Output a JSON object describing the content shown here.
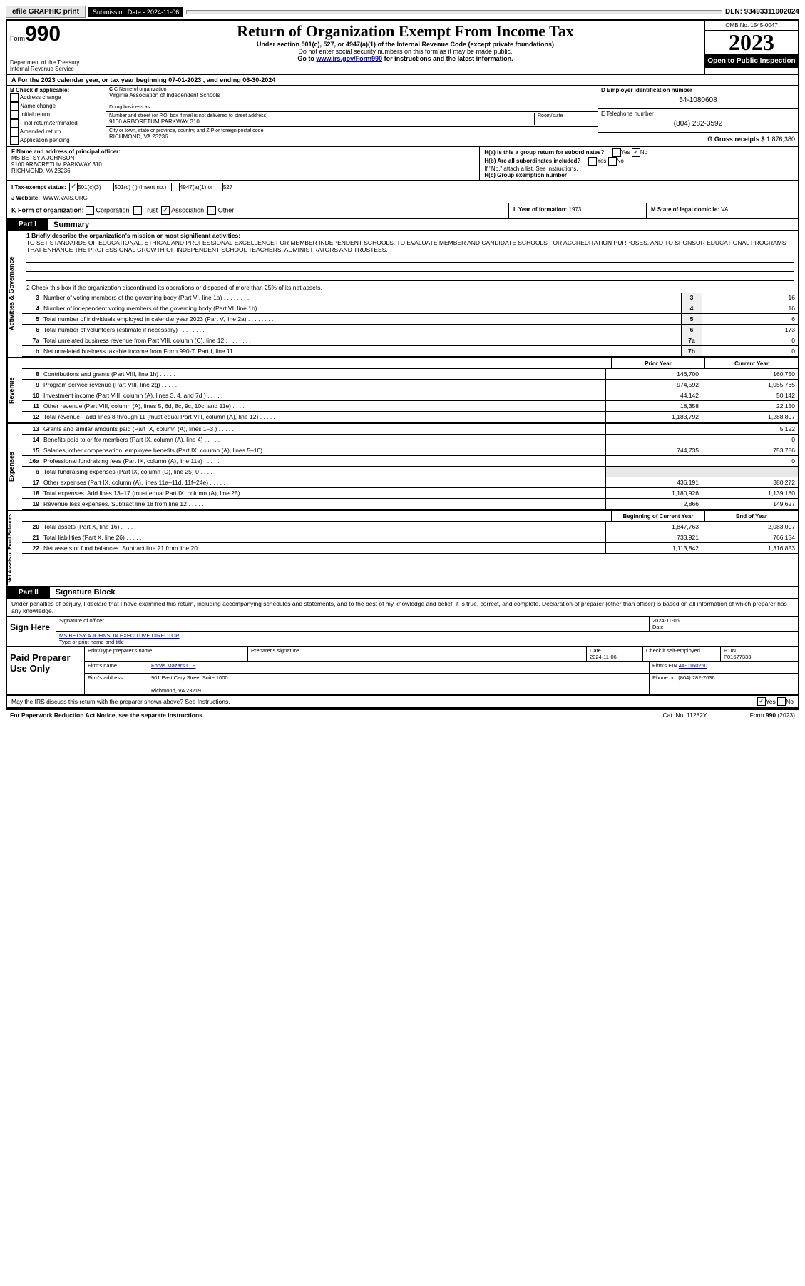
{
  "topbar": {
    "efile": "efile GRAPHIC print",
    "sub_date_label": "Submission Date - 2024-11-06",
    "dln": "DLN: 93493311002024"
  },
  "header": {
    "form_label": "Form",
    "form_num": "990",
    "dept": "Department of the Treasury",
    "irs": "Internal Revenue Service",
    "title": "Return of Organization Exempt From Income Tax",
    "sub1": "Under section 501(c), 527, or 4947(a)(1) of the Internal Revenue Code (except private foundations)",
    "sub2": "Do not enter social security numbers on this form as it may be made public.",
    "sub3_pre": "Go to ",
    "sub3_link": "www.irs.gov/Form990",
    "sub3_post": " for instructions and the latest information.",
    "omb": "OMB No. 1545-0047",
    "year": "2023",
    "open": "Open to Public Inspection"
  },
  "row_a": "A For the 2023 calendar year, or tax year beginning 07-01-2023   , and ending 06-30-2024",
  "section_b": {
    "b_label": "B Check if applicable:",
    "opts": [
      "Address change",
      "Name change",
      "Initial return",
      "Final return/terminated",
      "Amended return",
      "Application pending"
    ],
    "c_label": "C Name of organization",
    "org_name": "Virginia Association of Independent Schools",
    "dba_label": "Doing business as",
    "addr_label": "Number and street (or P.O. box if mail is not delivered to street address)",
    "room_label": "Room/suite",
    "addr": "9100 ARBORETUM PARKWAY 310",
    "city_label": "City or town, state or province, country, and ZIP or foreign postal code",
    "city": "RICHMOND, VA  23236",
    "d_label": "D Employer identification number",
    "ein": "54-1080608",
    "e_label": "E Telephone number",
    "phone": "(804) 282-3592",
    "g_label": "G Gross receipts $",
    "gross": "1,876,380"
  },
  "row_f": {
    "f_label": "F Name and address of principal officer:",
    "officer": "MS BETSY A JOHNSON",
    "officer_addr": "9100 ARBORETUM PARKWAY 310",
    "officer_city": "RICHMOND, VA  23236",
    "ha": "H(a)  Is this a group return for subordinates?",
    "hb": "H(b)  Are all subordinates included?",
    "hb_note": "If \"No,\" attach a list. See instructions.",
    "hc": "H(c)  Group exemption number",
    "yes": "Yes",
    "no": "No"
  },
  "row_i": {
    "label": "I   Tax-exempt status:",
    "o1": "501(c)(3)",
    "o2": "501(c) (  ) (insert no.)",
    "o3": "4947(a)(1) or",
    "o4": "527"
  },
  "row_j": {
    "label": "J   Website:",
    "site": "WWW.VAIS.ORG"
  },
  "row_k": {
    "k_label": "K Form of organization:",
    "corp": "Corporation",
    "trust": "Trust",
    "assoc": "Association",
    "other": "Other",
    "l_label": "L Year of formation: ",
    "l_val": "1973",
    "m_label": "M State of legal domicile: ",
    "m_val": "VA"
  },
  "part1": {
    "label": "Part I",
    "title": "Summary",
    "line1_label": "1   Briefly describe the organization's mission or most significant activities:",
    "mission": "TO SET STANDARDS OF EDUCATIONAL, ETHICAL AND PROFESSIONAL EXCELLENCE FOR MEMBER INDEPENDENT SCHOOLS, TO EVALUATE MEMBER AND CANDIDATE SCHOOLS FOR ACCREDITATION PURPOSES, AND TO SPONSOR EDUCATIONAL PROGRAMS THAT ENHANCE THE PROFESSIONAL GROWTH OF INDEPENDENT SCHOOL TEACHERS, ADMINISTRATORS AND TRUSTEES.",
    "line2": "2   Check this box      if the organization discontinued its operations or disposed of more than 25% of its net assets.",
    "side_gov": "Activities & Governance",
    "side_rev": "Revenue",
    "side_exp": "Expenses",
    "side_net": "Net Assets or Fund Balances",
    "prior_year": "Prior Year",
    "current_year": "Current Year",
    "beg_year": "Beginning of Current Year",
    "end_year": "End of Year"
  },
  "gov_lines": [
    {
      "n": "3",
      "d": "Number of voting members of the governing body (Part VI, line 1a)",
      "box": "3",
      "v": "16"
    },
    {
      "n": "4",
      "d": "Number of independent voting members of the governing body (Part VI, line 1b)",
      "box": "4",
      "v": "16"
    },
    {
      "n": "5",
      "d": "Total number of individuals employed in calendar year 2023 (Part V, line 2a)",
      "box": "5",
      "v": "6"
    },
    {
      "n": "6",
      "d": "Total number of volunteers (estimate if necessary)",
      "box": "6",
      "v": "173"
    },
    {
      "n": "7a",
      "d": "Total unrelated business revenue from Part VIII, column (C), line 12",
      "box": "7a",
      "v": "0"
    },
    {
      "n": "b",
      "d": "Net unrelated business taxable income from Form 990-T, Part I, line 11",
      "box": "7b",
      "v": "0"
    }
  ],
  "rev_lines": [
    {
      "n": "8",
      "d": "Contributions and grants (Part VIII, line 1h)",
      "p": "146,700",
      "c": "160,750"
    },
    {
      "n": "9",
      "d": "Program service revenue (Part VIII, line 2g)",
      "p": "974,592",
      "c": "1,055,765"
    },
    {
      "n": "10",
      "d": "Investment income (Part VIII, column (A), lines 3, 4, and 7d )",
      "p": "44,142",
      "c": "50,142"
    },
    {
      "n": "11",
      "d": "Other revenue (Part VIII, column (A), lines 5, 6d, 8c, 9c, 10c, and 11e)",
      "p": "18,358",
      "c": "22,150"
    },
    {
      "n": "12",
      "d": "Total revenue—add lines 8 through 11 (must equal Part VIII, column (A), line 12)",
      "p": "1,183,792",
      "c": "1,288,807"
    }
  ],
  "exp_lines": [
    {
      "n": "13",
      "d": "Grants and similar amounts paid (Part IX, column (A), lines 1–3 )",
      "p": "",
      "c": "5,122"
    },
    {
      "n": "14",
      "d": "Benefits paid to or for members (Part IX, column (A), line 4)",
      "p": "",
      "c": "0"
    },
    {
      "n": "15",
      "d": "Salaries, other compensation, employee benefits (Part IX, column (A), lines 5–10)",
      "p": "744,735",
      "c": "753,786"
    },
    {
      "n": "16a",
      "d": "Professional fundraising fees (Part IX, column (A), line 11e)",
      "p": "",
      "c": "0"
    },
    {
      "n": "b",
      "d": "Total fundraising expenses (Part IX, column (D), line 25) 0",
      "p": "",
      "c": "",
      "gray": true
    },
    {
      "n": "17",
      "d": "Other expenses (Part IX, column (A), lines 11a–11d, 11f–24e)",
      "p": "436,191",
      "c": "380,272"
    },
    {
      "n": "18",
      "d": "Total expenses. Add lines 13–17 (must equal Part IX, column (A), line 25)",
      "p": "1,180,926",
      "c": "1,139,180"
    },
    {
      "n": "19",
      "d": "Revenue less expenses. Subtract line 18 from line 12",
      "p": "2,866",
      "c": "149,627"
    }
  ],
  "net_lines": [
    {
      "n": "20",
      "d": "Total assets (Part X, line 16)",
      "p": "1,847,763",
      "c": "2,083,007"
    },
    {
      "n": "21",
      "d": "Total liabilities (Part X, line 26)",
      "p": "733,921",
      "c": "766,154"
    },
    {
      "n": "22",
      "d": "Net assets or fund balances. Subtract line 21 from line 20",
      "p": "1,113,842",
      "c": "1,316,853"
    }
  ],
  "part2": {
    "label": "Part II",
    "title": "Signature Block",
    "text": "Under penalties of perjury, I declare that I have examined this return, including accompanying schedules and statements, and to the best of my knowledge and belief, it is true, correct, and complete. Declaration of preparer (other than officer) is based on all information of which preparer has any knowledge."
  },
  "sign": {
    "here": "Sign Here",
    "sig_label": "Signature of officer",
    "date_label": "Date",
    "date1": "2024-11-06",
    "officer": "MS BETSY A JOHNSON  EXECUTIVE DIRECTOR",
    "type_label": "Type or print name and title"
  },
  "paid": {
    "label": "Paid Preparer Use Only",
    "print_label": "Print/Type preparer's name",
    "sig_label": "Preparer's signature",
    "date_label": "Date",
    "date": "2024-11-06",
    "check_label": "Check        if self-employed",
    "ptin_label": "PTIN",
    "ptin": "P01677333",
    "firm_label": "Firm's name",
    "firm": "Forvis Mazars LLP",
    "ein_label": "Firm's EIN",
    "ein": "44-0160260",
    "addr_label": "Firm's address",
    "addr": "901 East Cary Street Suite 1000",
    "city": "Richmond, VA  23219",
    "phone_label": "Phone no.",
    "phone": "(804) 282-7636"
  },
  "footer": {
    "discuss": "May the IRS discuss this return with the preparer shown above? See Instructions.",
    "yes": "Yes",
    "no": "No",
    "paperwork": "For Paperwork Reduction Act Notice, see the separate instructions.",
    "cat": "Cat. No. 11282Y",
    "form": "Form 990 (2023)"
  }
}
